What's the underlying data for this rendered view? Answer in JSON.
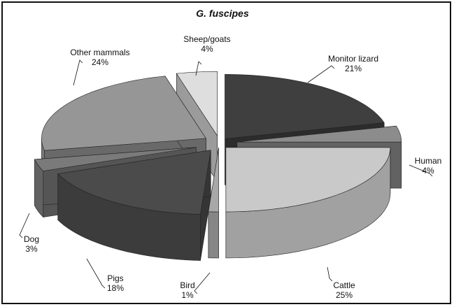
{
  "chart_data": {
    "type": "pie",
    "title": "G. fuscipes",
    "style": "3d-exploded",
    "slices": [
      {
        "label": "Monitor lizard",
        "value": 21,
        "pct_label": "21%",
        "color": "#3f3f3f"
      },
      {
        "label": "Human",
        "value": 4,
        "pct_label": "4%",
        "color": "#8c8c8c"
      },
      {
        "label": "Cattle",
        "value": 25,
        "pct_label": "25%",
        "color": "#c9c9c9"
      },
      {
        "label": "Bird",
        "value": 1,
        "pct_label": "1%",
        "color": "#a8a8a8"
      },
      {
        "label": "Pigs",
        "value": 18,
        "pct_label": "18%",
        "color": "#4b4b4b"
      },
      {
        "label": "Dog",
        "value": 3,
        "pct_label": "3%",
        "color": "#7a7a7a"
      },
      {
        "label": "Other mammals",
        "value": 24,
        "pct_label": "24%",
        "color": "#969696"
      },
      {
        "label": "Sheep/goats",
        "value": 4,
        "pct_label": "4%",
        "color": "#dedede"
      }
    ]
  }
}
